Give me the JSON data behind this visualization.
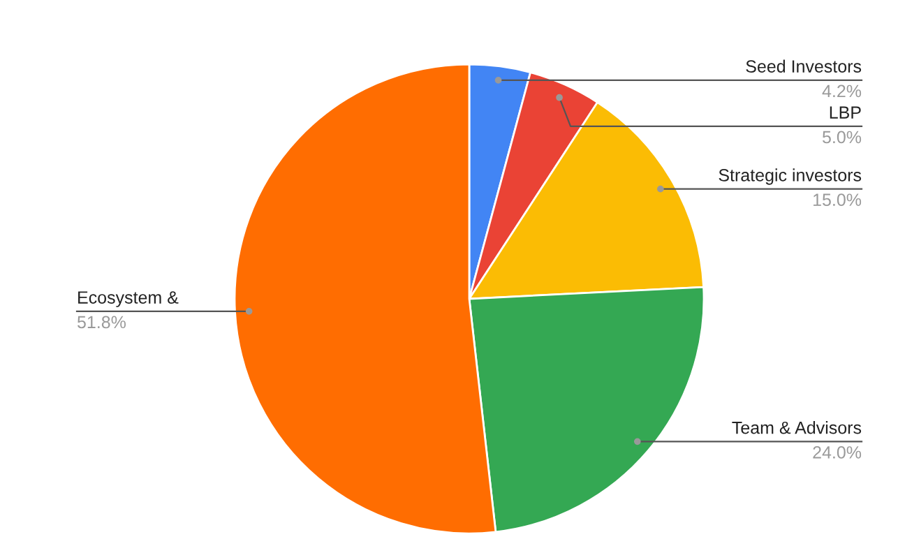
{
  "chart_data": {
    "type": "pie",
    "categories": [
      "Seed Investors",
      "LBP",
      "Strategic investors",
      "Team & Advisors",
      "Ecosystem &"
    ],
    "values": [
      4.2,
      5.0,
      15.0,
      24.0,
      51.8
    ],
    "colors": [
      "#4285f4",
      "#ea4335",
      "#fbbc04",
      "#34a853",
      "#ff6d01"
    ],
    "value_labels": [
      "4.2%",
      "5.0%",
      "15.0%",
      "24.0%",
      "51.8%"
    ]
  }
}
